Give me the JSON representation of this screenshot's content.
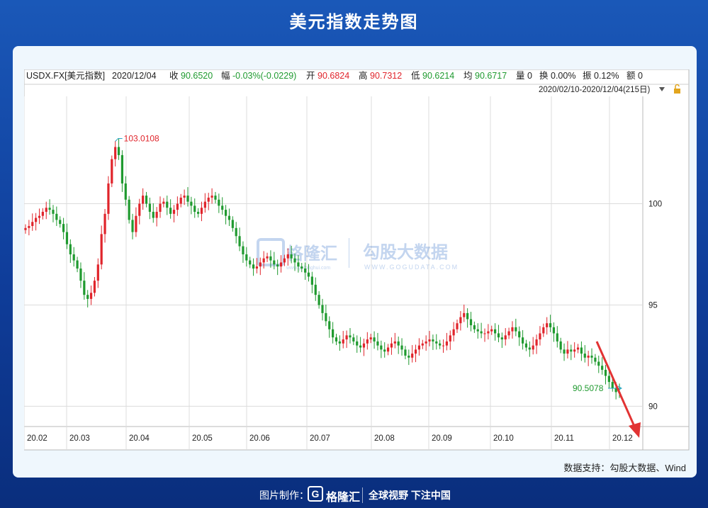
{
  "page_title": "美元指数走势图",
  "info_bar": {
    "symbol": "USDX.FX[美元指数]",
    "date": "2020/12/04",
    "close_label": "收",
    "close_value": "90.6520",
    "change_label": "幅",
    "change_value": "-0.03%(-0.0229)",
    "open_label": "开",
    "open_value": "90.6824",
    "high_label": "高",
    "high_value": "90.7312",
    "low_label": "低",
    "low_value": "90.6214",
    "avg_label": "均",
    "avg_value": "90.6717",
    "volume_label": "量",
    "volume_value": "0",
    "turnover_label": "换",
    "turnover_value": "0.00%",
    "amplitude_label": "振",
    "amplitude_value": "0.12%",
    "amount_label": "额",
    "amount_value": "0"
  },
  "range_label": "2020/02/10-2020/12/04(215日)",
  "watermark": {
    "brand1": "格隆汇",
    "brand1_sub": "www.gelonghui.com",
    "brand2": "勾股大数据",
    "brand2_sub": "WWW.GOGUDATA.COM"
  },
  "source_text": "数据支持：勾股大数据、Wind",
  "footer": {
    "made_by": "图片制作：",
    "logo_letter": "G",
    "brand": "格隆汇",
    "slogan": "全球视野 下注中国"
  },
  "colors": {
    "up": "#e0242b",
    "down": "#1f9a2f",
    "background": "#eff7fd",
    "header": "#1a58b8"
  },
  "chart_data": {
    "type": "candlestick",
    "title": "美元指数走势图",
    "x_ticks": [
      "20.02",
      "20.03",
      "20.04",
      "20.05",
      "20.06",
      "20.07",
      "20.08",
      "20.09",
      "20.10",
      "20.11",
      "20.12"
    ],
    "y_ticks": [
      90,
      95,
      100
    ],
    "ylim": [
      89.0,
      105.3
    ],
    "grid": true,
    "annotations": {
      "max_label": "103.0108",
      "min_label": "90.5078"
    },
    "close_series": [
      98.8,
      98.9,
      99.1,
      99.3,
      99.4,
      99.6,
      99.8,
      99.7,
      99.5,
      99.2,
      99.0,
      98.6,
      98.0,
      97.5,
      97.2,
      96.8,
      96.2,
      95.5,
      95.3,
      95.6,
      96.2,
      97.0,
      98.5,
      99.5,
      101.0,
      102.2,
      102.8,
      102.4,
      101.0,
      100.2,
      99.2,
      98.6,
      99.4,
      100.0,
      100.4,
      100.0,
      99.6,
      99.3,
      99.6,
      100.0,
      100.1,
      99.8,
      99.5,
      99.7,
      100.0,
      100.3,
      100.4,
      100.1,
      99.9,
      99.6,
      99.5,
      99.8,
      100.1,
      100.3,
      100.4,
      100.2,
      99.9,
      99.7,
      99.4,
      99.2,
      98.8,
      98.4,
      97.9,
      97.5,
      97.2,
      97.0,
      96.8,
      96.9,
      97.1,
      97.3,
      97.4,
      97.2,
      97.0,
      96.9,
      97.1,
      97.3,
      97.5,
      97.3,
      97.1,
      96.9,
      96.8,
      96.6,
      96.4,
      96.0,
      95.5,
      95.0,
      94.6,
      94.2,
      93.8,
      93.4,
      93.2,
      93.1,
      93.3,
      93.5,
      93.4,
      93.2,
      93.0,
      92.9,
      93.1,
      93.3,
      93.4,
      93.2,
      93.0,
      92.8,
      92.7,
      92.9,
      93.1,
      93.2,
      93.0,
      92.8,
      92.5,
      92.4,
      92.6,
      92.8,
      93.0,
      93.1,
      93.2,
      93.3,
      93.2,
      93.1,
      93.0,
      93.0,
      93.2,
      93.5,
      93.8,
      94.1,
      94.4,
      94.6,
      94.3,
      94.0,
      93.8,
      93.7,
      93.6,
      93.6,
      93.7,
      93.8,
      93.6,
      93.4,
      93.3,
      93.5,
      93.7,
      93.9,
      93.7,
      93.4,
      93.1,
      92.9,
      92.8,
      93.0,
      93.3,
      93.6,
      93.9,
      94.1,
      93.9,
      93.6,
      93.2,
      92.8,
      92.6,
      92.8,
      92.7,
      92.8,
      92.9,
      92.6,
      92.4,
      92.5,
      92.4,
      92.2,
      92.0,
      91.8,
      91.5,
      91.2,
      90.9,
      90.7,
      90.65
    ]
  }
}
